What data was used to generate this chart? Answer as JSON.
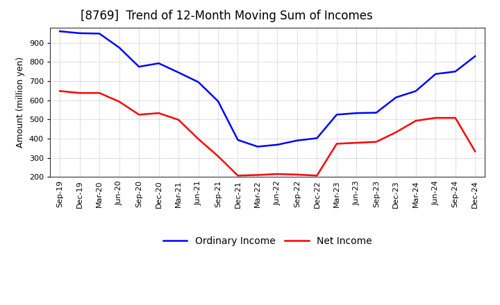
{
  "title": "[8769]  Trend of 12-Month Moving Sum of Incomes",
  "ylabel": "Amount (million yen)",
  "ylim": [
    200,
    980
  ],
  "yticks": [
    200,
    300,
    400,
    500,
    600,
    700,
    800,
    900
  ],
  "background_color": "#FFFFFF",
  "grid_color": "#9999BB",
  "labels": [
    "Sep-19",
    "Dec-19",
    "Mar-20",
    "Jun-20",
    "Sep-20",
    "Dec-20",
    "Mar-21",
    "Jun-21",
    "Sep-21",
    "Dec-21",
    "Mar-22",
    "Jun-22",
    "Sep-22",
    "Dec-22",
    "Mar-23",
    "Jun-23",
    "Sep-23",
    "Dec-23",
    "Mar-24",
    "Jun-24",
    "Sep-24",
    "Dec-24"
  ],
  "ordinary_income": [
    960,
    950,
    948,
    875,
    775,
    793,
    745,
    695,
    595,
    393,
    358,
    368,
    390,
    402,
    525,
    533,
    535,
    615,
    648,
    737,
    750,
    830
  ],
  "net_income": [
    648,
    638,
    638,
    593,
    525,
    533,
    498,
    398,
    308,
    207,
    210,
    215,
    212,
    207,
    373,
    378,
    383,
    433,
    493,
    508,
    508,
    333
  ],
  "ordinary_color": "#0000FF",
  "net_color": "#FF0000",
  "title_fontsize": 12,
  "axis_fontsize": 9,
  "tick_fontsize": 8,
  "legend_fontsize": 10,
  "linewidth": 1.8
}
